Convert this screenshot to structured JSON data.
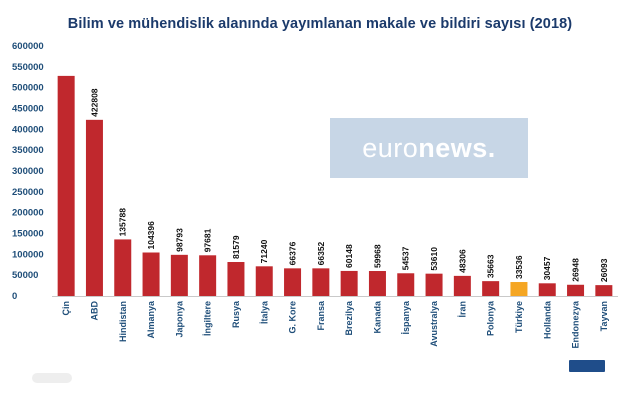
{
  "chart_data": {
    "type": "bar",
    "title": "Bilim ve mühendislik alanında yayımlanan makale ve bildiri sayısı  (2018)",
    "categories": [
      "Çin",
      "ABD",
      "Hindistan",
      "Almanya",
      "Japonya",
      "İngiltere",
      "Rusya",
      "İtalya",
      "G. Kore",
      "Fransa",
      "Brezilya",
      "Kanada",
      "İspanya",
      "Avustralya",
      "İran",
      "Polonya",
      "Türkiye",
      "Hollanda",
      "Endonezya",
      "Tayvan"
    ],
    "values": [
      528263,
      422808,
      135788,
      104396,
      98793,
      97681,
      81579,
      71240,
      66376,
      66352,
      60148,
      59968,
      54537,
      53610,
      48306,
      35663,
      33536,
      30457,
      26948,
      26093
    ],
    "value_labels": [
      "",
      "422808",
      "135788",
      "104396",
      "98793",
      "97681",
      "81579",
      "71240",
      "66376",
      "66352",
      "60148",
      "59968",
      "54537",
      "53610",
      "48306",
      "35663",
      "33536",
      "30457",
      "26948",
      "26093"
    ],
    "yticks": [
      "0",
      "50000",
      "100000",
      "150000",
      "200000",
      "250000",
      "300000",
      "350000",
      "400000",
      "450000",
      "500000",
      "550000",
      "600000"
    ],
    "ylim": [
      0,
      600000
    ],
    "xlabel": "",
    "ylabel": "",
    "grid": false,
    "legend": "none",
    "colors": {
      "bar": "#c0282d",
      "highlight": "#f5a623",
      "highlight_index": 16,
      "axis_text": "#1f4e79",
      "title": "#1b3a6b"
    }
  },
  "watermark": {
    "light": "euro",
    "bold": "news."
  }
}
